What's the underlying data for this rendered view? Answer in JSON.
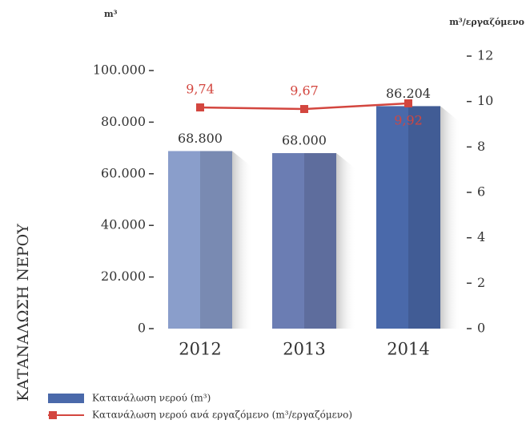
{
  "chart_data": {
    "type": "bar",
    "axis_label": "ΚΑΤΑΝΑΛΩΣΗ ΝΕΡΟΥ",
    "y_unit": "m³",
    "y2_unit": "m³/εργαζόμενο",
    "categories": [
      "2012",
      "2013",
      "2014"
    ],
    "series": [
      {
        "name": "Κατανάλωση νερού (m³)",
        "type": "bar",
        "color": "#4a69aa",
        "colors": [
          "#8a9ecb",
          "#6b7db3",
          "#4a69aa"
        ],
        "values": [
          68800,
          68000,
          86204
        ],
        "value_labels": [
          "68.800",
          "68.000",
          "86.204"
        ]
      },
      {
        "name": "Κατανάλωση νερού ανά εργαζόμενο (m³/εργαζόμενο)",
        "type": "line",
        "axis": "y2",
        "color": "#d3463f",
        "values": [
          9.74,
          9.67,
          9.92
        ],
        "value_labels": [
          "9,74",
          "9,67",
          "9,92"
        ]
      }
    ],
    "ylim": [
      0,
      100000
    ],
    "yticks": [
      0,
      {
        "value": 20000,
        "label": "20.000"
      },
      {
        "value": 40000,
        "label": "40.000"
      },
      {
        "value": 60000,
        "label": "60.000"
      },
      {
        "value": 80000,
        "label": "80.000"
      },
      {
        "value": 100000,
        "label": "100.000"
      }
    ],
    "y2lim": [
      0,
      12
    ],
    "y2ticks": [
      0,
      2,
      4,
      6,
      8,
      10,
      12
    ]
  }
}
